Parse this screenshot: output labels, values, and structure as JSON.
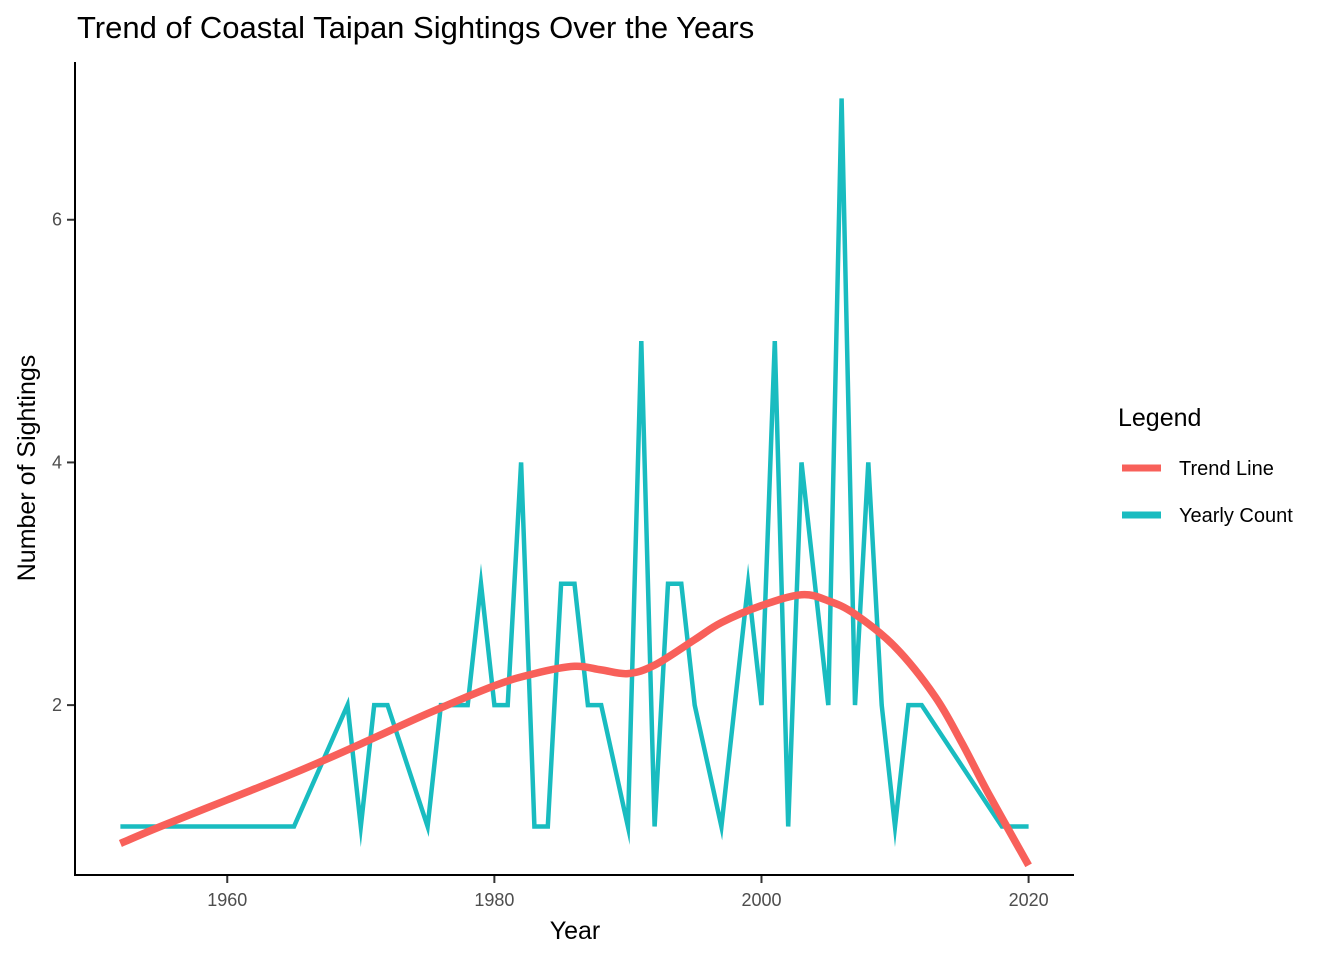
{
  "chart_data": {
    "type": "line",
    "title": "Trend of Coastal Taipan Sightings Over the Years",
    "xlabel": "Year",
    "ylabel": "Number of Sightings",
    "xlim": [
      1948.6,
      2023.4
    ],
    "ylim": [
      0.6,
      7.3
    ],
    "x_ticks": [
      1960,
      1980,
      2000,
      2020
    ],
    "y_ticks": [
      2,
      4,
      6
    ],
    "legend": {
      "title": "Legend",
      "placement": "right"
    },
    "series": [
      {
        "name": "Yearly Count",
        "color": "#19BCC0",
        "x": [
          1952,
          1965,
          1969,
          1970,
          1971,
          1972,
          1975,
          1976,
          1977,
          1978,
          1979,
          1980,
          1981,
          1982,
          1983,
          1984,
          1985,
          1986,
          1987,
          1988,
          1990,
          1991,
          1992,
          1993,
          1994,
          1995,
          1997,
          1999,
          2000,
          2001,
          2002,
          2003,
          2005,
          2006,
          2007,
          2008,
          2009,
          2010,
          2011,
          2012,
          2018,
          2020
        ],
        "y": [
          1,
          1,
          2,
          1,
          2,
          2,
          1,
          2,
          2,
          2,
          3,
          2,
          2,
          4,
          1,
          1,
          3,
          3,
          2,
          2,
          1,
          5,
          1,
          3,
          3,
          2,
          1,
          3,
          2,
          5,
          1,
          4,
          2,
          7,
          2,
          4,
          2,
          1,
          2,
          2,
          1,
          1
        ]
      },
      {
        "name": "Trend Line",
        "color": "#F8605A",
        "x": [
          1952,
          1955,
          1960,
          1965,
          1970,
          1975,
          1980,
          1983,
          1986,
          1988,
          1990,
          1992,
          1995,
          1997,
          2000,
          2003,
          2005,
          2007,
          2010,
          2013,
          2015,
          2017,
          2020
        ],
        "y": [
          0.86,
          1.0,
          1.22,
          1.44,
          1.68,
          1.93,
          2.16,
          2.26,
          2.32,
          2.29,
          2.26,
          2.33,
          2.54,
          2.68,
          2.82,
          2.91,
          2.86,
          2.75,
          2.48,
          2.07,
          1.69,
          1.27,
          0.68
        ]
      }
    ]
  }
}
